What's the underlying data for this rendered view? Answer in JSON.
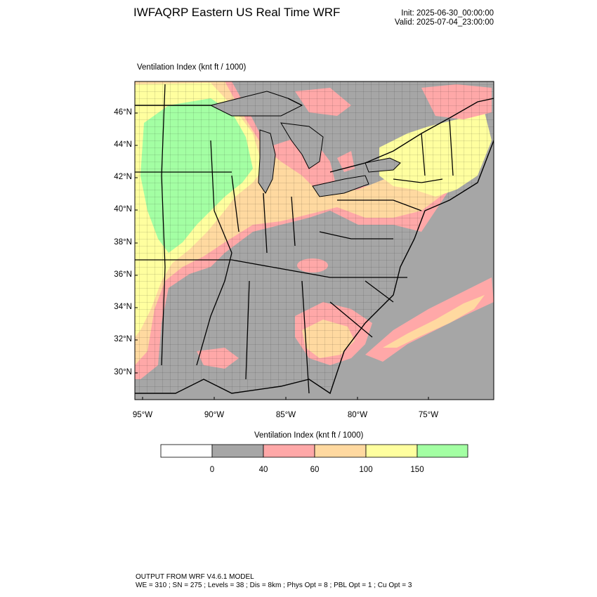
{
  "header": {
    "title": "IWFAQRP Eastern US Real Time WRF",
    "init": "Init: 2025-06-30_00:00:00",
    "valid": "Valid: 2025-07-04_23:00:00"
  },
  "map": {
    "field_label": "Ventilation Index   (knt ft / 1000)",
    "lat_labels": [
      "46°N",
      "44°N",
      "42°N",
      "40°N",
      "38°N",
      "36°N",
      "34°N",
      "32°N",
      "30°N"
    ],
    "lon_labels": [
      "95°W",
      "90°W",
      "85°W",
      "80°W",
      "75°W"
    ],
    "colors": {
      "ocean_gray": "#a6a6a6",
      "below_40": "#a6a6a6",
      "c40_60": "#ffa8a8",
      "c60_100": "#ffd9a0",
      "c100_150": "#ffff9f",
      "above_150": "#a3ffa3",
      "lake": "#a6a6a6"
    }
  },
  "colorbar": {
    "title": "Ventilation Index  (knt ft / 1000)",
    "ticks": [
      "0",
      "40",
      "60",
      "100",
      "150"
    ],
    "bins": [
      {
        "color": "#ffffff"
      },
      {
        "color": "#a6a6a6"
      },
      {
        "color": "#ffa8a8"
      },
      {
        "color": "#ffd9a0"
      },
      {
        "color": "#ffff9f"
      },
      {
        "color": "#a3ffa3"
      }
    ]
  },
  "footer": {
    "line1": "OUTPUT FROM WRF V4.6.1 MODEL",
    "line2": "WE = 310 ; SN = 275 ; Levels = 38 ; Dis = 8km ; Phys Opt = 8 ; PBL Opt = 1 ; Cu Opt = 3"
  }
}
